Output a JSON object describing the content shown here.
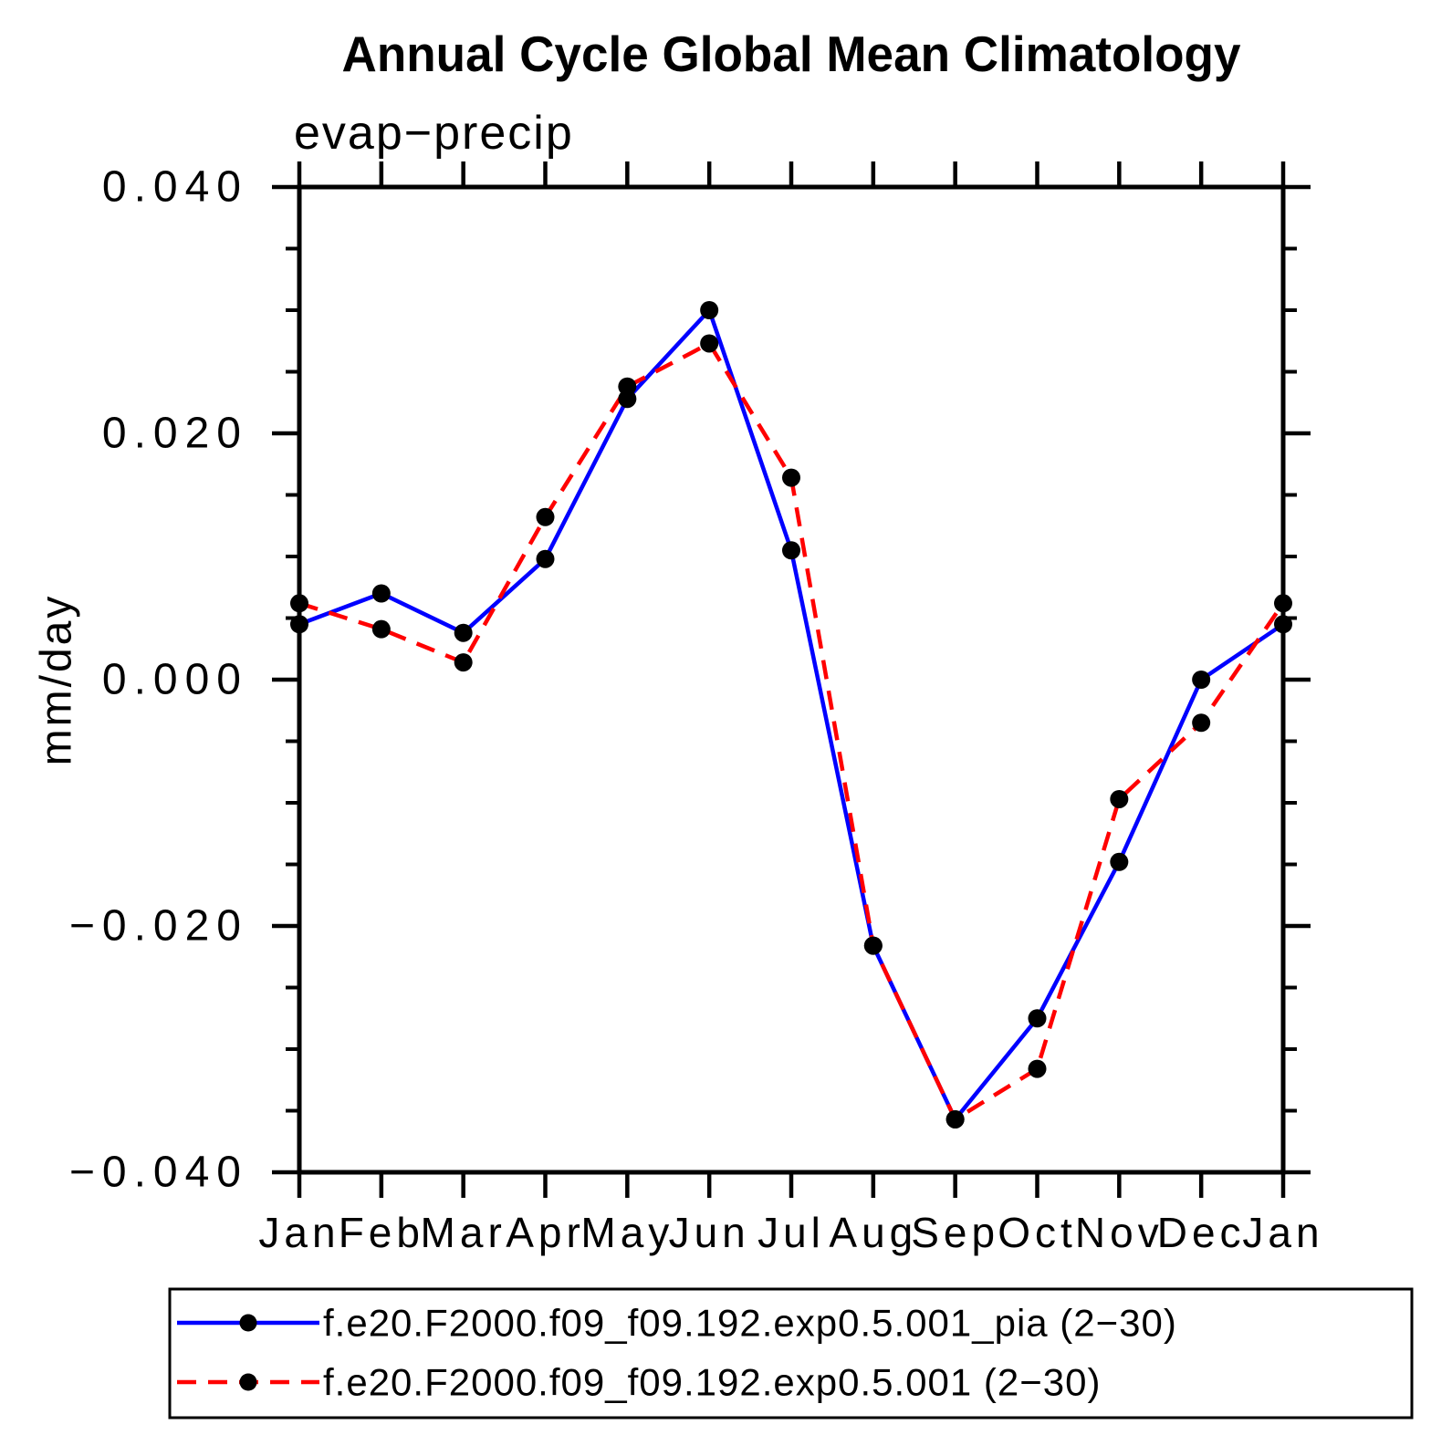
{
  "chart_data": {
    "type": "line",
    "title": "Annual Cycle Global Mean Climatology",
    "subtitle": "evap−precip",
    "ylabel": "mm/day",
    "x_labels": [
      "Jan",
      "Feb",
      "Mar",
      "Apr",
      "May",
      "Jun",
      "Jul",
      "Aug",
      "Sep",
      "Oct",
      "Nov",
      "Dec",
      "Jan"
    ],
    "ylim": [
      -0.04,
      0.04
    ],
    "ytick_major": [
      0.04,
      0.02,
      0.0,
      -0.02,
      -0.04
    ],
    "ytick_labels": [
      "0.040",
      "0.020",
      "0.000",
      "−0.020",
      "−0.040"
    ],
    "ytick_minor_step": 0.005,
    "grid": false,
    "legend_position": "bottom",
    "marker": "circle",
    "marker_color": "#000000",
    "series": [
      {
        "name": "f.e20.F2000.f09_f09.192.exp0.5.001_pia (2−30)",
        "color": "#0000ff",
        "style": "solid",
        "values": [
          0.0045,
          0.007,
          0.0038,
          0.0098,
          0.0228,
          0.03,
          0.0105,
          -0.0216,
          -0.0357,
          -0.0275,
          -0.0148,
          0.0,
          0.0045
        ]
      },
      {
        "name": "f.e20.F2000.f09_f09.192.exp0.5.001 (2−30)",
        "color": "#ff0000",
        "style": "dashed",
        "values": [
          0.0062,
          0.0041,
          0.0014,
          0.0132,
          0.0238,
          0.0273,
          0.0164,
          -0.0216,
          -0.0357,
          -0.0316,
          -0.0097,
          -0.0035,
          0.0062
        ]
      }
    ]
  }
}
